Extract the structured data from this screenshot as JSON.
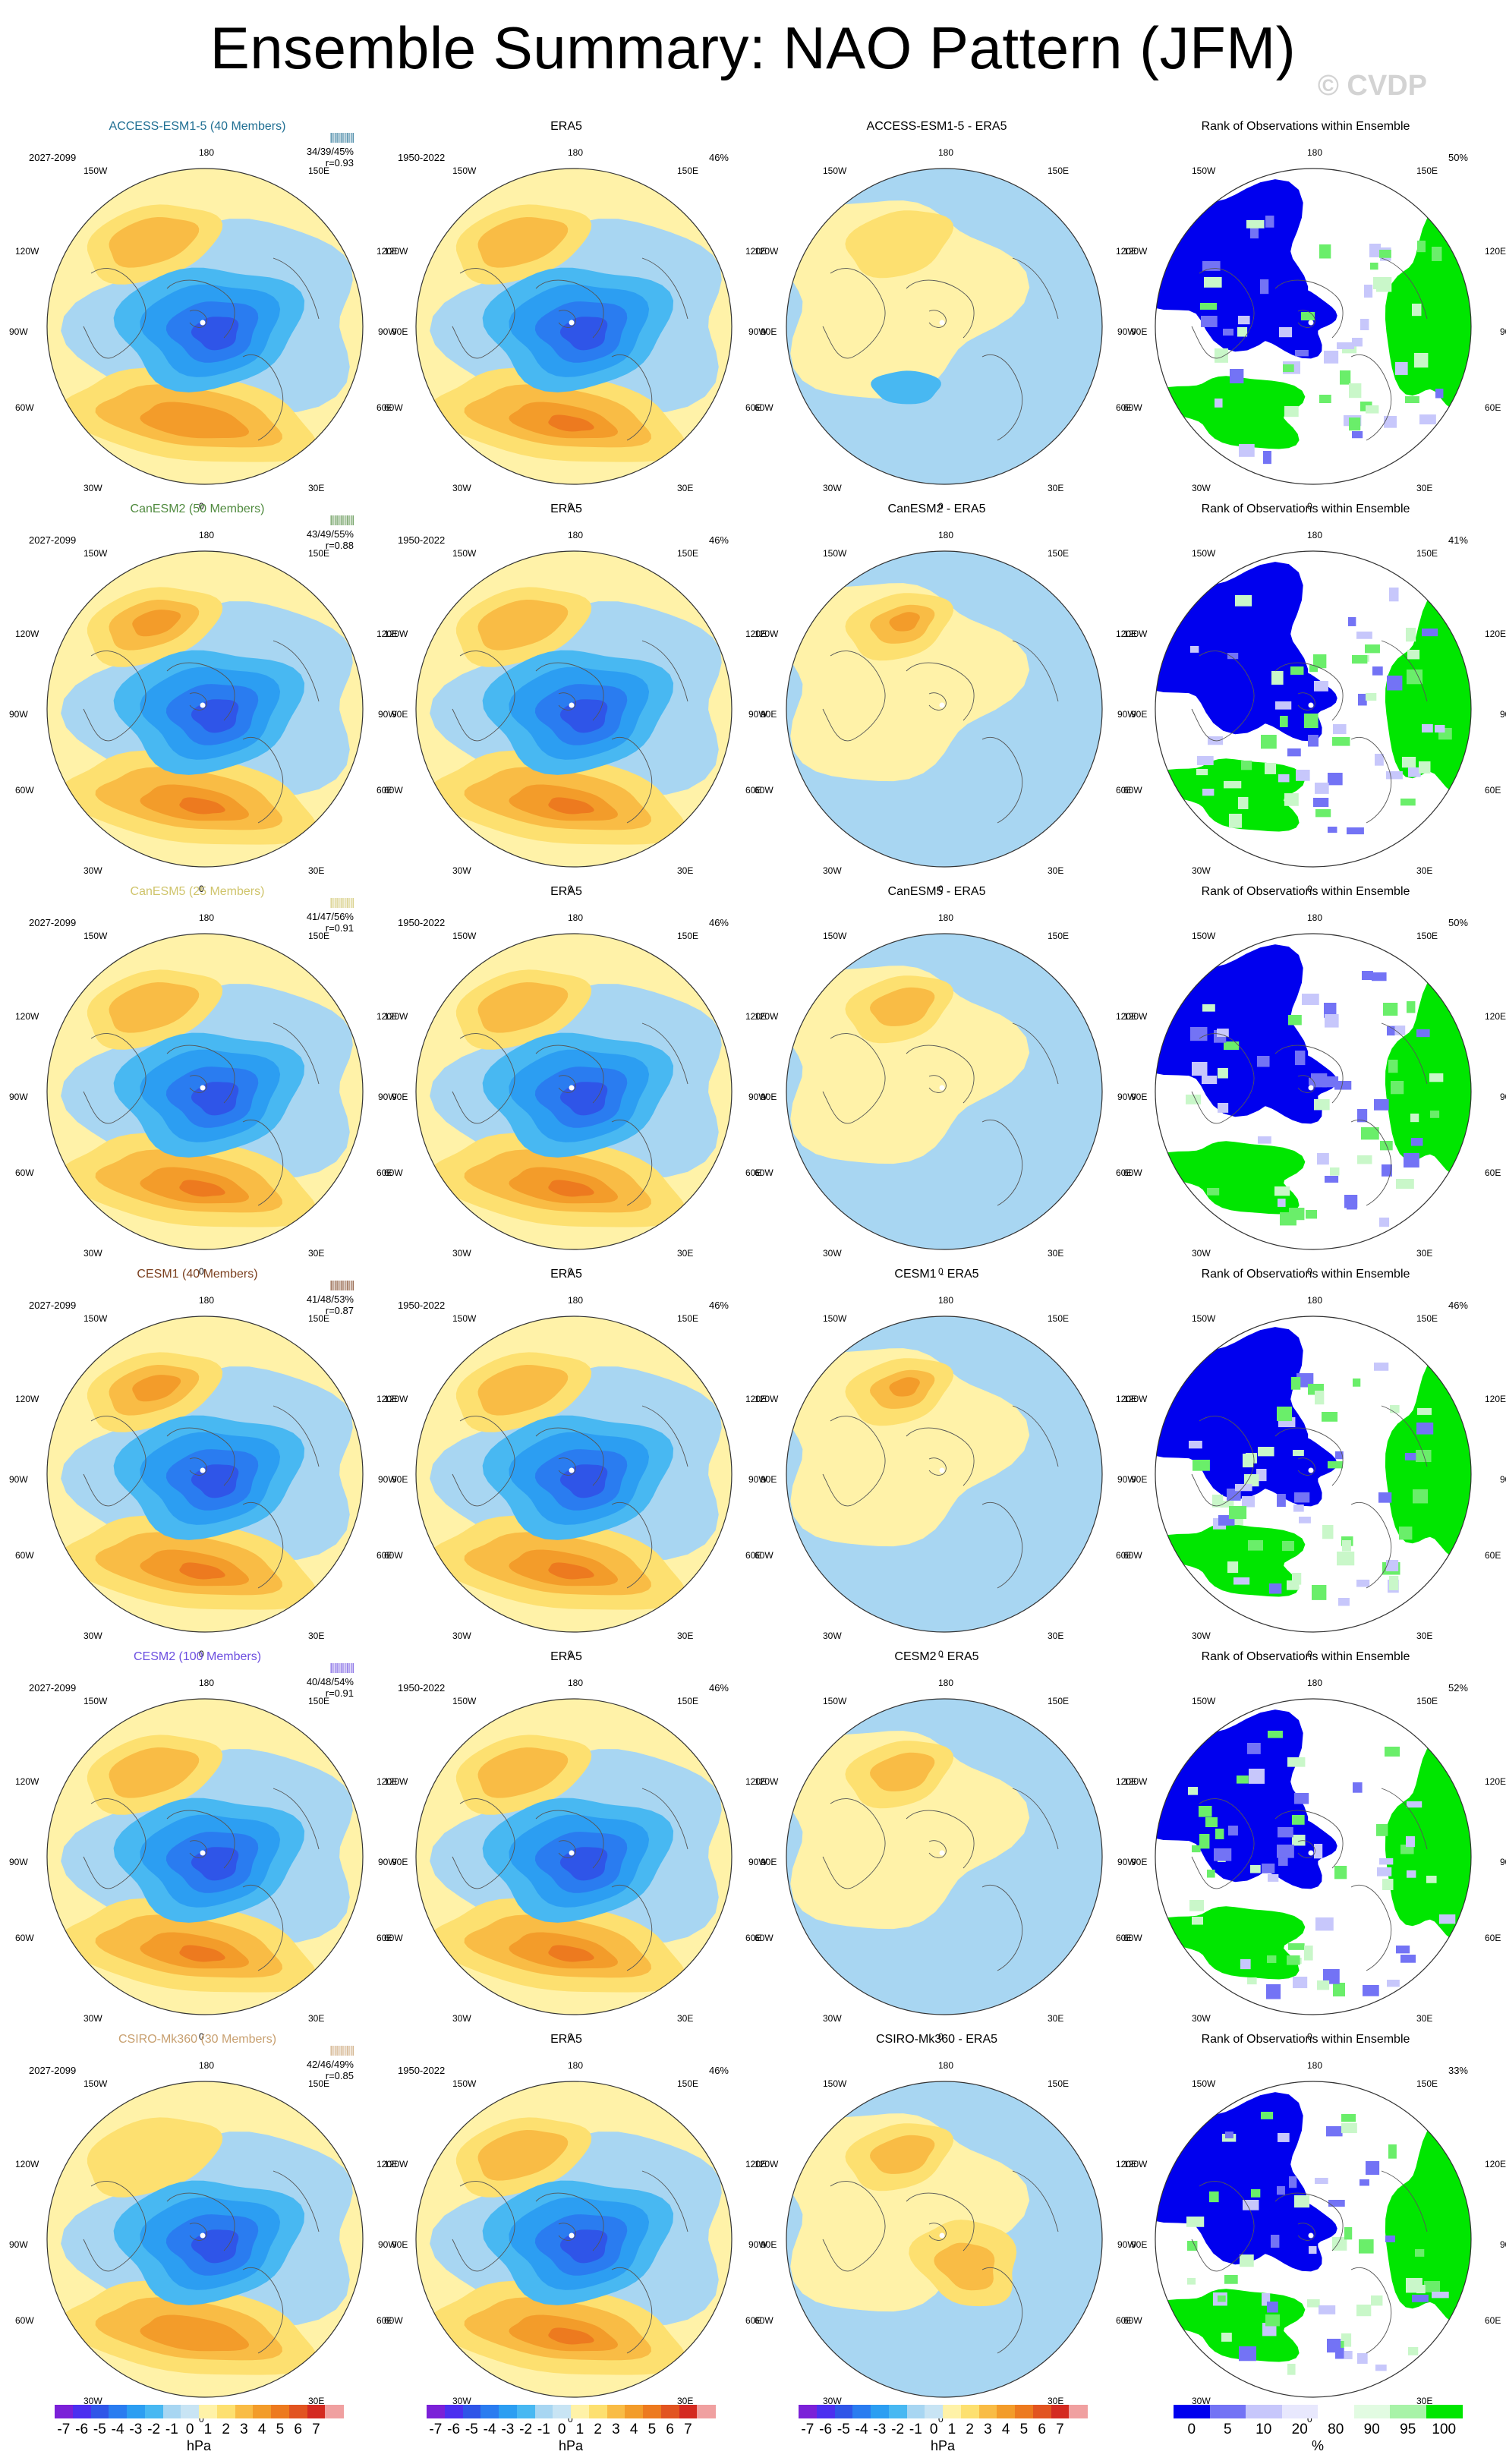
{
  "title": "Ensemble Summary: NAO Pattern (JFM)",
  "watermark": "© CVDP",
  "colors": {
    "neg7": "#7b20d8",
    "neg6": "#4b2ff0",
    "neg5": "#2f55e8",
    "neg4": "#2a7cf0",
    "neg3": "#2c9ef2",
    "neg2": "#48b8f2",
    "neg1": "#a8d6f2",
    "pos0": "#fff2a8",
    "pos1": "#fde070",
    "pos2": "#f9bc45",
    "pos3": "#f39c2a",
    "pos4": "#ed7a1f",
    "pos5": "#e25420",
    "pos6": "#d42a20",
    "pos7": "#f0a0a0",
    "rank_darkblue": "#0000ee",
    "rank_blue": "#7373f5",
    "rank_lightblue": "#c7c7fb",
    "rank_white": "#ffffff",
    "rank_lightgreen": "#c9f7c9",
    "rank_green": "#6aee6a",
    "rank_brightgreen": "#00e600",
    "model_access": "#206f93",
    "model_canesm2": "#4f8a3e",
    "model_canesm5": "#cfc46b",
    "model_cesm1": "#7a3f1e",
    "model_cesm2": "#6c4ee0",
    "model_csiro": "#c8a070"
  },
  "lon_labels": [
    "180",
    "150E",
    "120E",
    "90E",
    "60E",
    "30E",
    "0",
    "30W",
    "60W",
    "90W",
    "120W",
    "150W"
  ],
  "rows": [
    {
      "model": "ACCESS-ESM1-5 (40 Members)",
      "model_color": "#206f93",
      "years": "2027-2099",
      "stats": "34/39/45%",
      "corr": "r=0.93",
      "obs": "ERA5",
      "obs_years": "1950-2022",
      "obs_pct": "46%",
      "diff": "ACCESS-ESM1-5 - ERA5",
      "rank": "Rank of Observations within Ensemble",
      "rank_pct": "50%"
    },
    {
      "model": "CanESM2 (50 Members)",
      "model_color": "#4f8a3e",
      "years": "2027-2099",
      "stats": "43/49/55%",
      "corr": "r=0.88",
      "obs": "ERA5",
      "obs_years": "1950-2022",
      "obs_pct": "46%",
      "diff": "CanESM2 - ERA5",
      "rank": "Rank of Observations within Ensemble",
      "rank_pct": "41%"
    },
    {
      "model": "CanESM5 (25 Members)",
      "model_color": "#cfc46b",
      "years": "2027-2099",
      "stats": "41/47/56%",
      "corr": "r=0.91",
      "obs": "ERA5",
      "obs_years": "1950-2022",
      "obs_pct": "46%",
      "diff": "CanESM5 - ERA5",
      "rank": "Rank of Observations within Ensemble",
      "rank_pct": "50%"
    },
    {
      "model": "CESM1 (40 Members)",
      "model_color": "#7a3f1e",
      "years": "2027-2099",
      "stats": "41/48/53%",
      "corr": "r=0.87",
      "obs": "ERA5",
      "obs_years": "1950-2022",
      "obs_pct": "46%",
      "diff": "CESM1 - ERA5",
      "rank": "Rank of Observations within Ensemble",
      "rank_pct": "46%"
    },
    {
      "model": "CESM2 (100 Members)",
      "model_color": "#6c4ee0",
      "years": "2027-2099",
      "stats": "40/48/54%",
      "corr": "r=0.91",
      "obs": "ERA5",
      "obs_years": "1950-2022",
      "obs_pct": "46%",
      "diff": "CESM2 - ERA5",
      "rank": "Rank of Observations within Ensemble",
      "rank_pct": "52%"
    },
    {
      "model": "CSIRO-Mk360 (30 Members)",
      "model_color": "#c8a070",
      "years": "2027-2099",
      "stats": "42/46/49%",
      "corr": "r=0.85",
      "obs": "ERA5",
      "obs_years": "1950-2022",
      "obs_pct": "46%",
      "diff": "CSIRO-Mk360 - ERA5",
      "rank": "Rank of Observations within Ensemble",
      "rank_pct": "33%"
    }
  ],
  "colorbar_hpa": {
    "ticks": [
      "-7",
      "-6",
      "-5",
      "-4",
      "-3",
      "-2",
      "-1",
      "0",
      "1",
      "2",
      "3",
      "4",
      "5",
      "6",
      "7"
    ],
    "unit": "hPa",
    "swatches": [
      "#7b20d8",
      "#4b2ff0",
      "#2f55e8",
      "#2a7cf0",
      "#2c9ef2",
      "#48b8f2",
      "#a8d6f2",
      "#c8e4f4",
      "#fff2a8",
      "#fde070",
      "#f9bc45",
      "#f39c2a",
      "#ed7a1f",
      "#e25420",
      "#d42a20",
      "#f0a0a0"
    ]
  },
  "colorbar_rank": {
    "ticks": [
      "0",
      "5",
      "10",
      "20",
      "80",
      "90",
      "95",
      "100"
    ],
    "unit": "%",
    "swatches": [
      "#0000ee",
      "#7373f5",
      "#c7c7fb",
      "#e8e8fd",
      "#ffffff",
      "#e2fbe2",
      "#a8f3a8",
      "#00e600"
    ]
  }
}
